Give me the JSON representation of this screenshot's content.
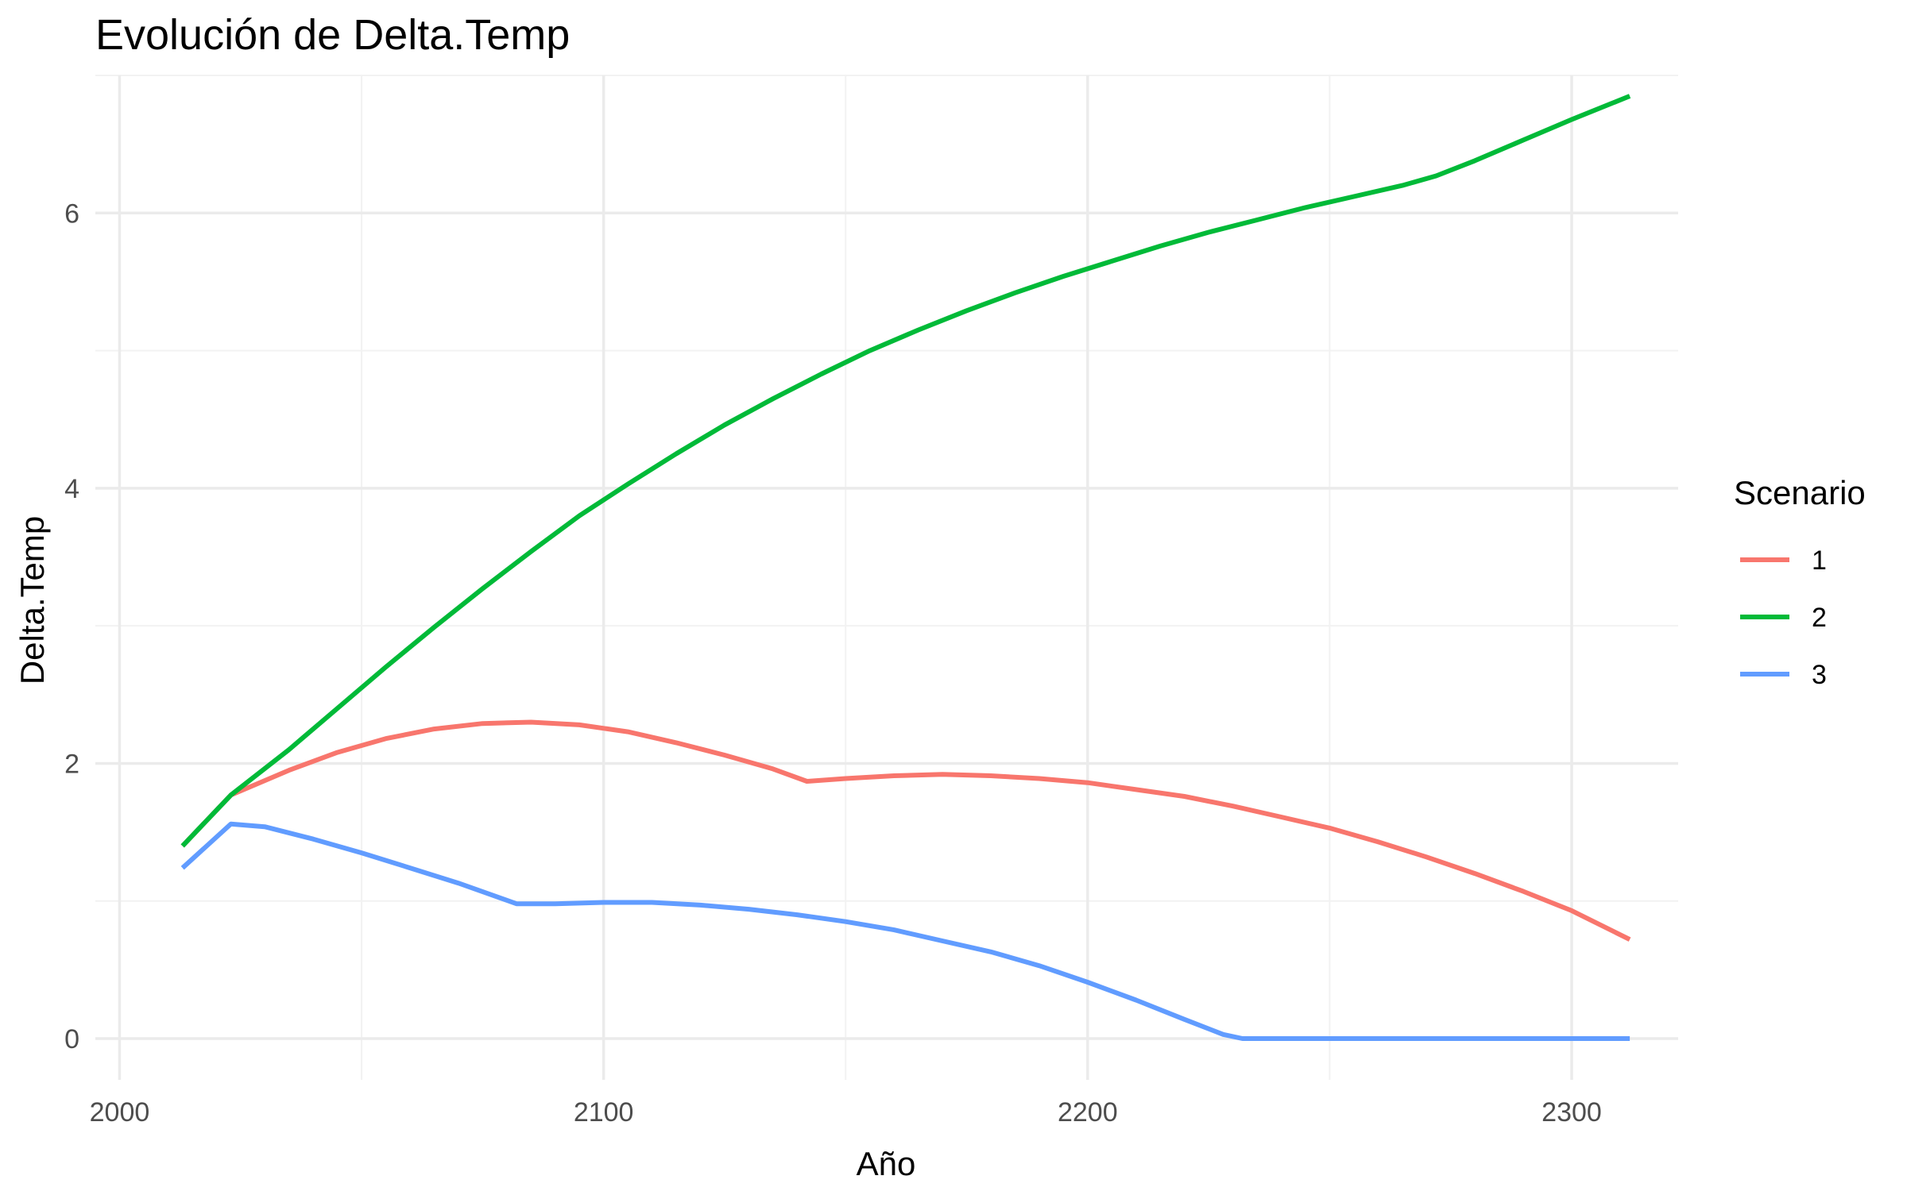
{
  "chart_data": {
    "type": "line",
    "title": "Evolución de Delta.Temp",
    "xlabel": "Año",
    "ylabel": "Delta.Temp",
    "xlim": [
      1995,
      2322
    ],
    "ylim": [
      -0.3,
      7.0
    ],
    "x_ticks": [
      2000,
      2100,
      2200,
      2300
    ],
    "x_tick_labels": [
      "2000",
      "2100",
      "2200",
      "2300"
    ],
    "x_minor_ticks": [
      2050,
      2150,
      2250
    ],
    "y_ticks": [
      0,
      2,
      4,
      6
    ],
    "y_tick_labels": [
      "0",
      "2",
      "4",
      "6"
    ],
    "y_minor_ticks": [
      1,
      3,
      5,
      7
    ],
    "grid": true,
    "legend": {
      "title": "Scenario",
      "placement": "right"
    },
    "series": [
      {
        "name": "1",
        "color": "#F8766D",
        "x": [
          2013,
          2023,
          2035,
          2045,
          2055,
          2065,
          2075,
          2085,
          2095,
          2105,
          2115,
          2125,
          2135,
          2142,
          2150,
          2160,
          2170,
          2180,
          2190,
          2200,
          2210,
          2220,
          2230,
          2240,
          2250,
          2260,
          2270,
          2280,
          2290,
          2300,
          2312
        ],
        "y": [
          1.4,
          1.77,
          1.95,
          2.08,
          2.18,
          2.25,
          2.29,
          2.3,
          2.28,
          2.23,
          2.15,
          2.06,
          1.96,
          1.87,
          1.89,
          1.91,
          1.92,
          1.91,
          1.89,
          1.86,
          1.81,
          1.76,
          1.69,
          1.61,
          1.53,
          1.43,
          1.32,
          1.2,
          1.07,
          0.93,
          0.72
        ]
      },
      {
        "name": "2",
        "color": "#00BA38",
        "x": [
          2013,
          2023,
          2035,
          2045,
          2055,
          2065,
          2075,
          2085,
          2095,
          2105,
          2115,
          2125,
          2135,
          2145,
          2155,
          2165,
          2175,
          2185,
          2195,
          2205,
          2215,
          2225,
          2235,
          2245,
          2255,
          2265,
          2272,
          2280,
          2290,
          2300,
          2312
        ],
        "y": [
          1.4,
          1.77,
          2.1,
          2.4,
          2.7,
          2.99,
          3.27,
          3.54,
          3.8,
          4.03,
          4.25,
          4.46,
          4.65,
          4.83,
          5.0,
          5.15,
          5.29,
          5.42,
          5.54,
          5.65,
          5.76,
          5.86,
          5.95,
          6.04,
          6.12,
          6.2,
          6.27,
          6.38,
          6.53,
          6.68,
          6.85
        ]
      },
      {
        "name": "3",
        "color": "#619CFF",
        "x": [
          2013,
          2023,
          2030,
          2040,
          2050,
          2060,
          2070,
          2082,
          2090,
          2100,
          2110,
          2120,
          2130,
          2140,
          2150,
          2160,
          2170,
          2180,
          2190,
          2200,
          2210,
          2220,
          2228,
          2232,
          2240,
          2260,
          2280,
          2300,
          2312
        ],
        "y": [
          1.24,
          1.56,
          1.54,
          1.45,
          1.35,
          1.24,
          1.13,
          0.98,
          0.98,
          0.99,
          0.99,
          0.97,
          0.94,
          0.9,
          0.85,
          0.79,
          0.71,
          0.63,
          0.53,
          0.41,
          0.28,
          0.14,
          0.03,
          0.0,
          0.0,
          0.0,
          0.0,
          0.0,
          0.0
        ]
      }
    ]
  }
}
